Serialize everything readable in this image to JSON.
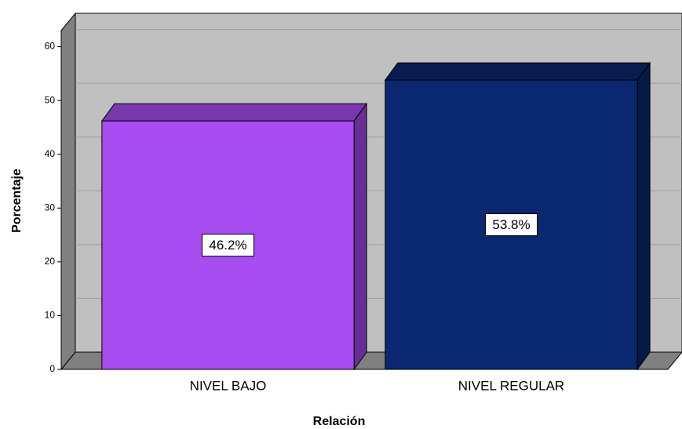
{
  "chart_data": {
    "type": "bar3d",
    "categories": [
      "NIVEL BAJO",
      "NIVEL REGULAR"
    ],
    "values": [
      46.2,
      53.8
    ],
    "value_labels": [
      "46.2%",
      "53.8%"
    ],
    "colors": [
      "#a64cf0",
      "#0a2870"
    ],
    "x_label": "Relación",
    "y_label": "Porcentaje",
    "ylim": [
      0,
      63
    ],
    "yticks": [
      0,
      10,
      20,
      30,
      40,
      50,
      60
    ],
    "grid": true
  }
}
